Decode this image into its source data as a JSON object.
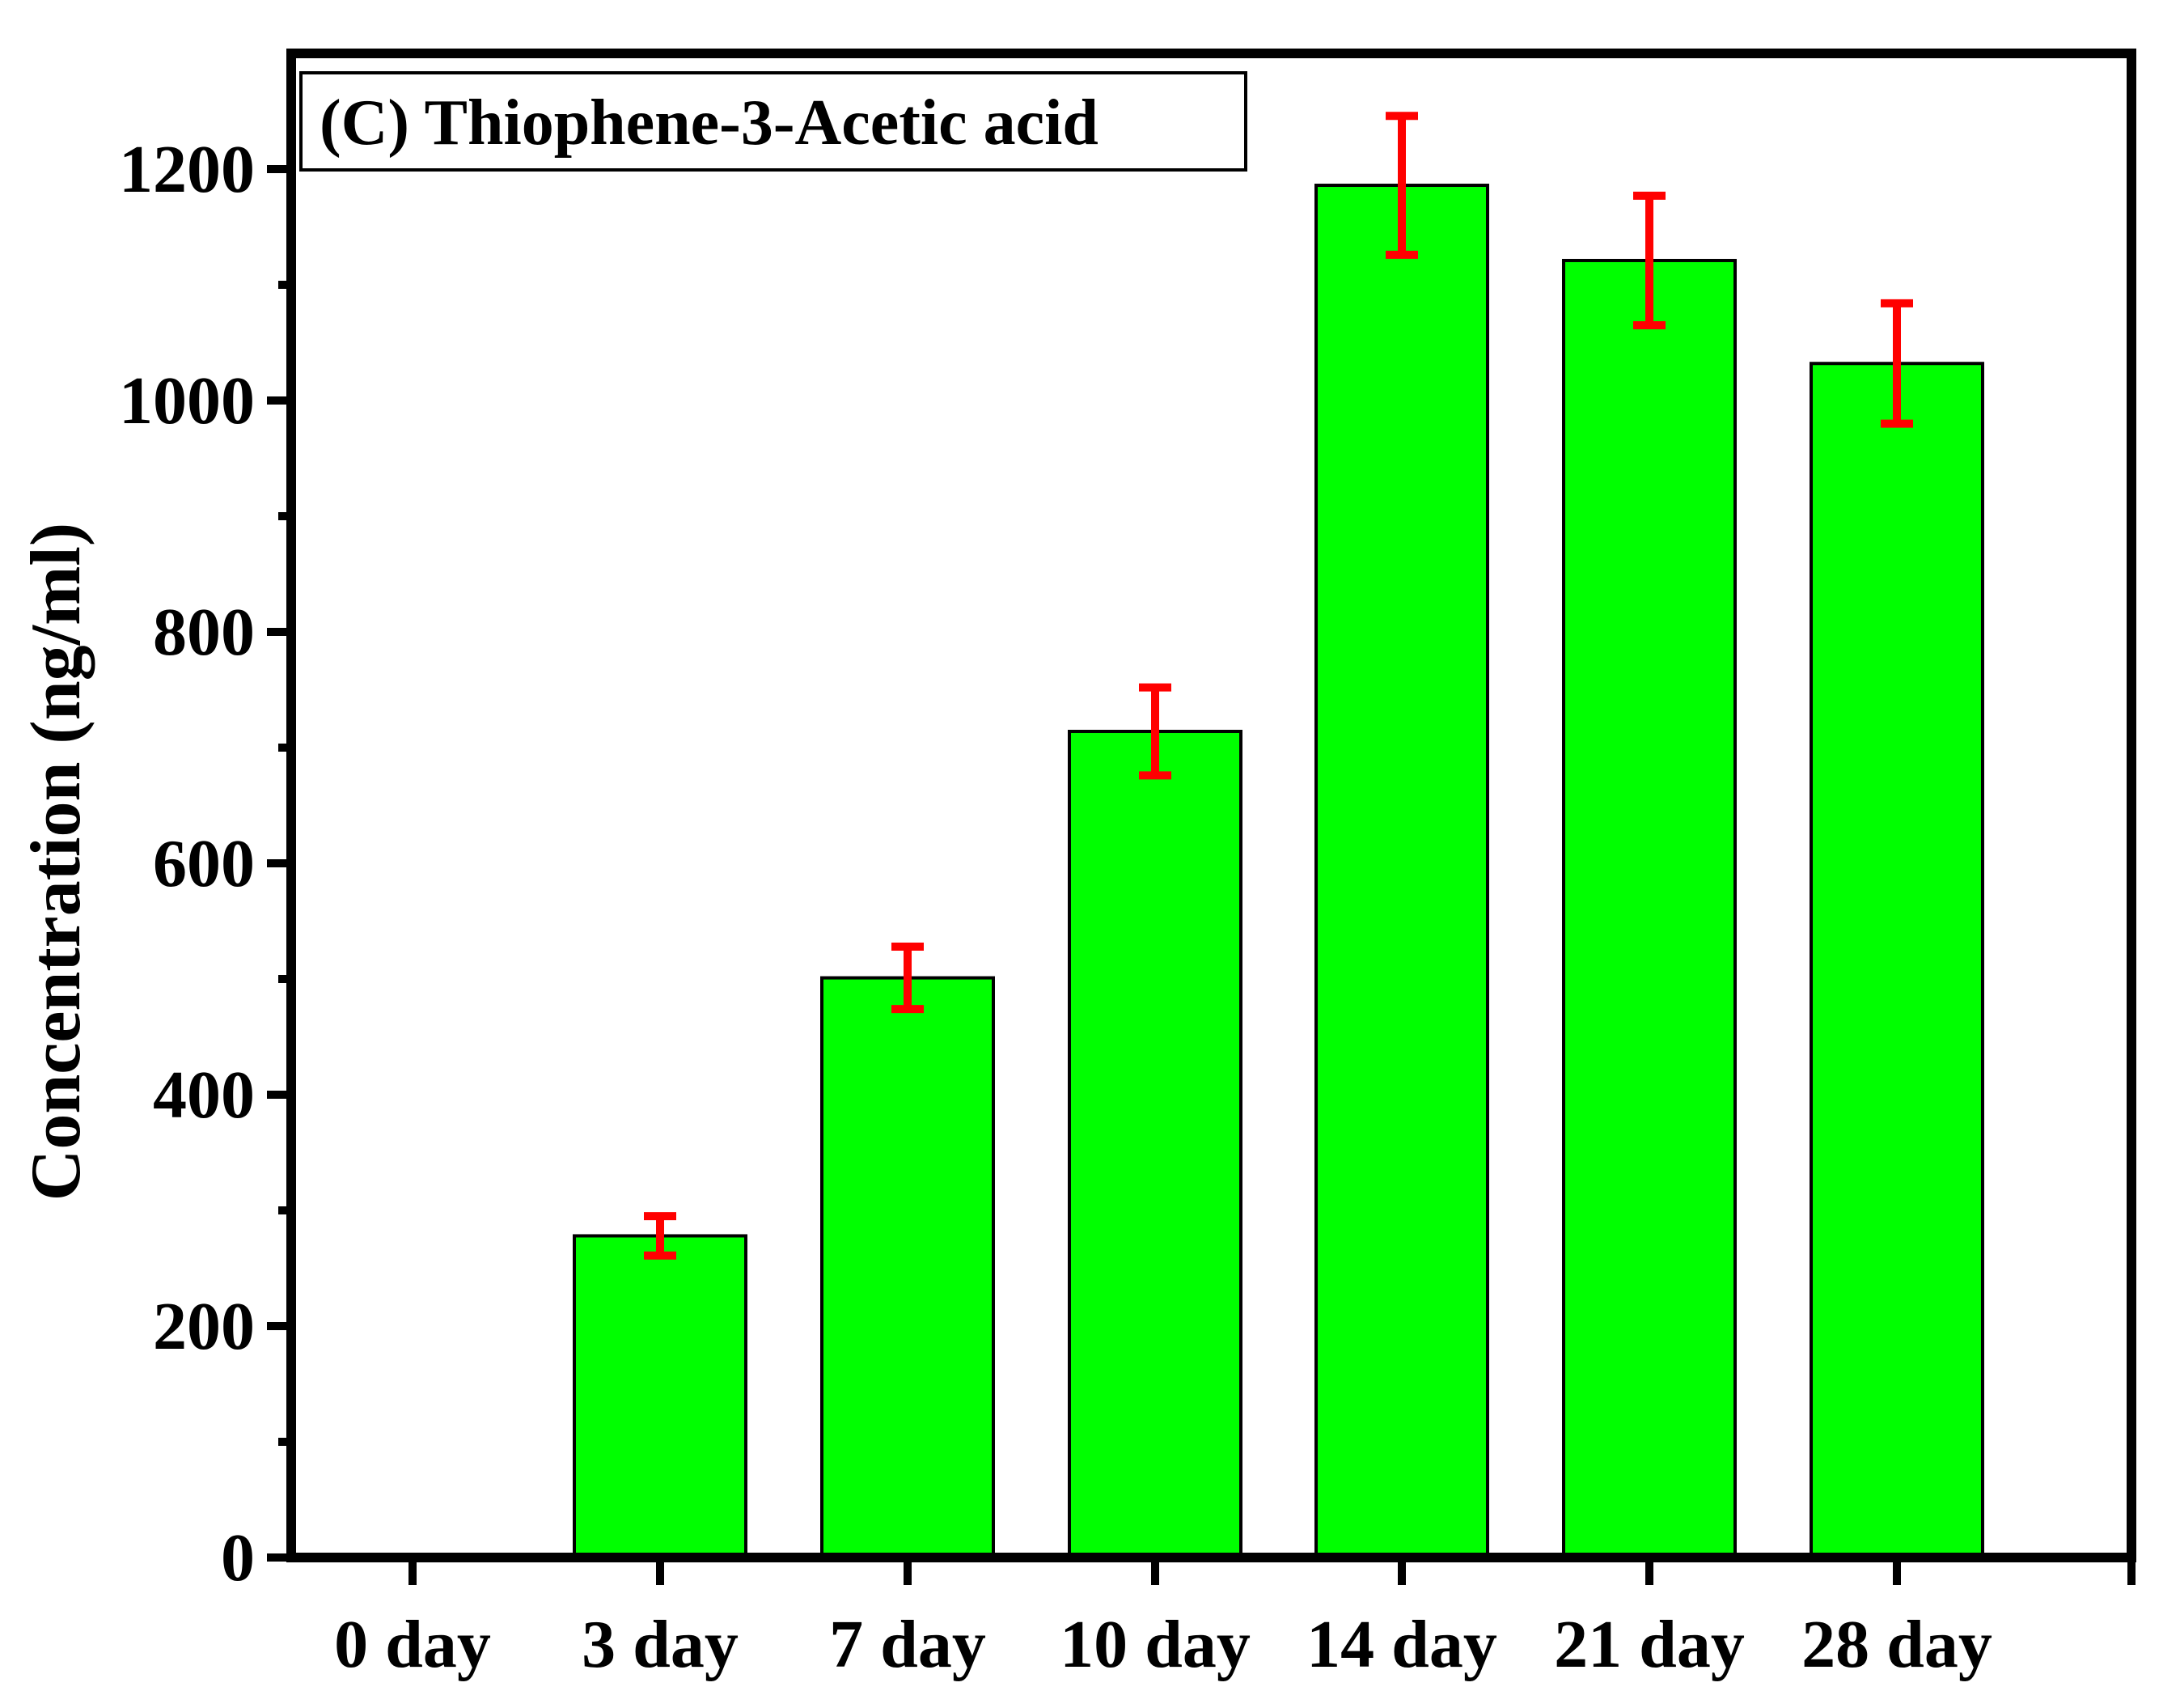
{
  "chart_data": {
    "type": "bar",
    "title": "(C) Thiophene-3-Acetic acid",
    "xlabel": "",
    "ylabel": "Concentration (ng/ml)",
    "categories": [
      "0 day",
      "3 day",
      "7 day",
      "10 day",
      "14 day",
      "21 day",
      "28 day"
    ],
    "values": [
      0,
      278,
      501,
      714,
      1186,
      1121,
      1032
    ],
    "errors": [
      0,
      17,
      27,
      38,
      60,
      56,
      52
    ],
    "ylim": [
      0,
      1300
    ],
    "yticks": [
      0,
      200,
      400,
      600,
      800,
      1000,
      1200
    ],
    "ytick_labels": [
      "0",
      "200",
      "400",
      "600",
      "800",
      "1000",
      "1200"
    ],
    "bar_color": "#00ff00",
    "error_color": "#ff0000",
    "grid": false,
    "legend": "none"
  }
}
